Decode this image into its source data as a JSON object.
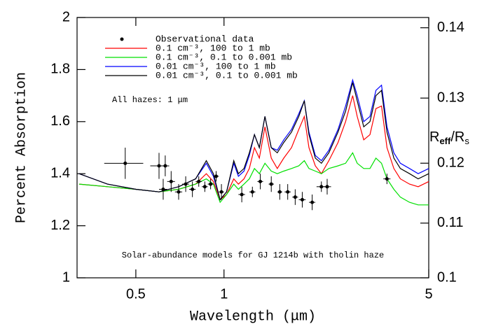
{
  "chart_data": {
    "type": "line",
    "xlabel": "Wavelength (μm)",
    "ylabel": "Percent Absorption",
    "y2label": [
      "R",
      "eff",
      "/R",
      "s"
    ],
    "annotations": [
      "All hazes: 1 μm",
      "Solar-abundance models for GJ 1214b with tholin haze"
    ],
    "xscale": "log",
    "xlim": [
      0.315,
      5
    ],
    "xticks": [
      0.5,
      1,
      5
    ],
    "ylim": [
      1,
      2
    ],
    "yticks": [
      1,
      1.2,
      1.4,
      1.6,
      1.8,
      2
    ],
    "y2scale": "square",
    "y2lim": [
      0.1,
      0.1414
    ],
    "y2ticks": [
      0.1,
      0.11,
      0.12,
      0.13,
      0.14
    ],
    "legend": "upper left",
    "x": [
      0.32,
      0.4,
      0.5,
      0.6,
      0.7,
      0.8,
      0.87,
      0.92,
      0.97,
      1.02,
      1.08,
      1.12,
      1.17,
      1.22,
      1.27,
      1.32,
      1.38,
      1.45,
      1.52,
      1.6,
      1.7,
      1.8,
      1.88,
      1.95,
      2.05,
      2.15,
      2.28,
      2.45,
      2.6,
      2.75,
      2.85,
      3.0,
      3.15,
      3.3,
      3.45,
      3.6,
      3.8,
      4.0,
      4.3,
      4.6,
      5.0
    ],
    "series": [
      {
        "name": "Observational data",
        "type": "scatter",
        "color": "#000000",
        "x": [
          0.46,
          0.6,
          0.63,
          0.62,
          0.66,
          0.7,
          0.74,
          0.78,
          0.82,
          0.86,
          0.9,
          0.94,
          0.98,
          1.15,
          1.25,
          1.33,
          1.45,
          1.55,
          1.65,
          1.75,
          1.85,
          2.0,
          2.15,
          2.25,
          3.6
        ],
        "values": [
          1.44,
          1.43,
          1.43,
          1.34,
          1.37,
          1.33,
          1.36,
          1.34,
          1.37,
          1.35,
          1.36,
          1.39,
          1.33,
          1.32,
          1.33,
          1.37,
          1.36,
          1.33,
          1.33,
          1.31,
          1.3,
          1.29,
          1.35,
          1.35,
          1.38
        ],
        "xerr": [
          0.07,
          0.04,
          0.02,
          0.02,
          0.02,
          0.02,
          0.02,
          0.02,
          0.02,
          0.02,
          0.02,
          0.02,
          0.02,
          0.03,
          0.03,
          0.03,
          0.03,
          0.03,
          0.04,
          0.04,
          0.05,
          0.05,
          0.08,
          0.07,
          0.1
        ],
        "yerr": [
          0.06,
          0.05,
          0.04,
          0.04,
          0.04,
          0.03,
          0.03,
          0.03,
          0.02,
          0.02,
          0.02,
          0.02,
          0.03,
          0.03,
          0.02,
          0.03,
          0.03,
          0.03,
          0.03,
          0.03,
          0.03,
          0.03,
          0.02,
          0.03,
          0.02
        ]
      },
      {
        "name": "0.1 cm⁻³, 100 to 1 mb",
        "type": "line",
        "color": "#ff0000",
        "values": [
          1.36,
          1.35,
          1.34,
          1.33,
          1.34,
          1.36,
          1.4,
          1.37,
          1.3,
          1.32,
          1.38,
          1.36,
          1.38,
          1.42,
          1.5,
          1.46,
          1.58,
          1.46,
          1.42,
          1.46,
          1.5,
          1.57,
          1.62,
          1.5,
          1.43,
          1.4,
          1.45,
          1.52,
          1.6,
          1.7,
          1.62,
          1.53,
          1.55,
          1.65,
          1.66,
          1.5,
          1.42,
          1.38,
          1.36,
          1.35,
          1.37
        ]
      },
      {
        "name": "0.1 cm⁻³, 0.1 to 0.001 mb",
        "type": "line",
        "color": "#00e000",
        "values": [
          1.36,
          1.35,
          1.34,
          1.33,
          1.34,
          1.36,
          1.38,
          1.36,
          1.29,
          1.32,
          1.36,
          1.34,
          1.36,
          1.38,
          1.42,
          1.4,
          1.44,
          1.41,
          1.4,
          1.41,
          1.42,
          1.43,
          1.45,
          1.42,
          1.41,
          1.4,
          1.42,
          1.43,
          1.44,
          1.48,
          1.44,
          1.42,
          1.42,
          1.46,
          1.44,
          1.38,
          1.34,
          1.31,
          1.29,
          1.28,
          1.28
        ]
      },
      {
        "name": "0.01 cm⁻³, 100 to 1 mb",
        "type": "line",
        "color": "#0000ff",
        "values": [
          1.4,
          1.36,
          1.34,
          1.33,
          1.35,
          1.38,
          1.44,
          1.39,
          1.3,
          1.33,
          1.44,
          1.39,
          1.41,
          1.47,
          1.55,
          1.5,
          1.62,
          1.5,
          1.49,
          1.53,
          1.57,
          1.63,
          1.68,
          1.56,
          1.47,
          1.45,
          1.49,
          1.57,
          1.66,
          1.76,
          1.7,
          1.6,
          1.62,
          1.72,
          1.74,
          1.58,
          1.48,
          1.44,
          1.42,
          1.4,
          1.42
        ]
      },
      {
        "name": "0.01 cm⁻³, 0.1 to 0.001 mb",
        "type": "line",
        "color": "#000000",
        "values": [
          1.4,
          1.36,
          1.34,
          1.33,
          1.35,
          1.38,
          1.45,
          1.4,
          1.3,
          1.33,
          1.45,
          1.4,
          1.42,
          1.48,
          1.55,
          1.5,
          1.62,
          1.5,
          1.48,
          1.52,
          1.56,
          1.62,
          1.68,
          1.55,
          1.46,
          1.44,
          1.48,
          1.56,
          1.64,
          1.75,
          1.68,
          1.58,
          1.6,
          1.7,
          1.72,
          1.56,
          1.46,
          1.42,
          1.4,
          1.38,
          1.4
        ]
      }
    ]
  }
}
